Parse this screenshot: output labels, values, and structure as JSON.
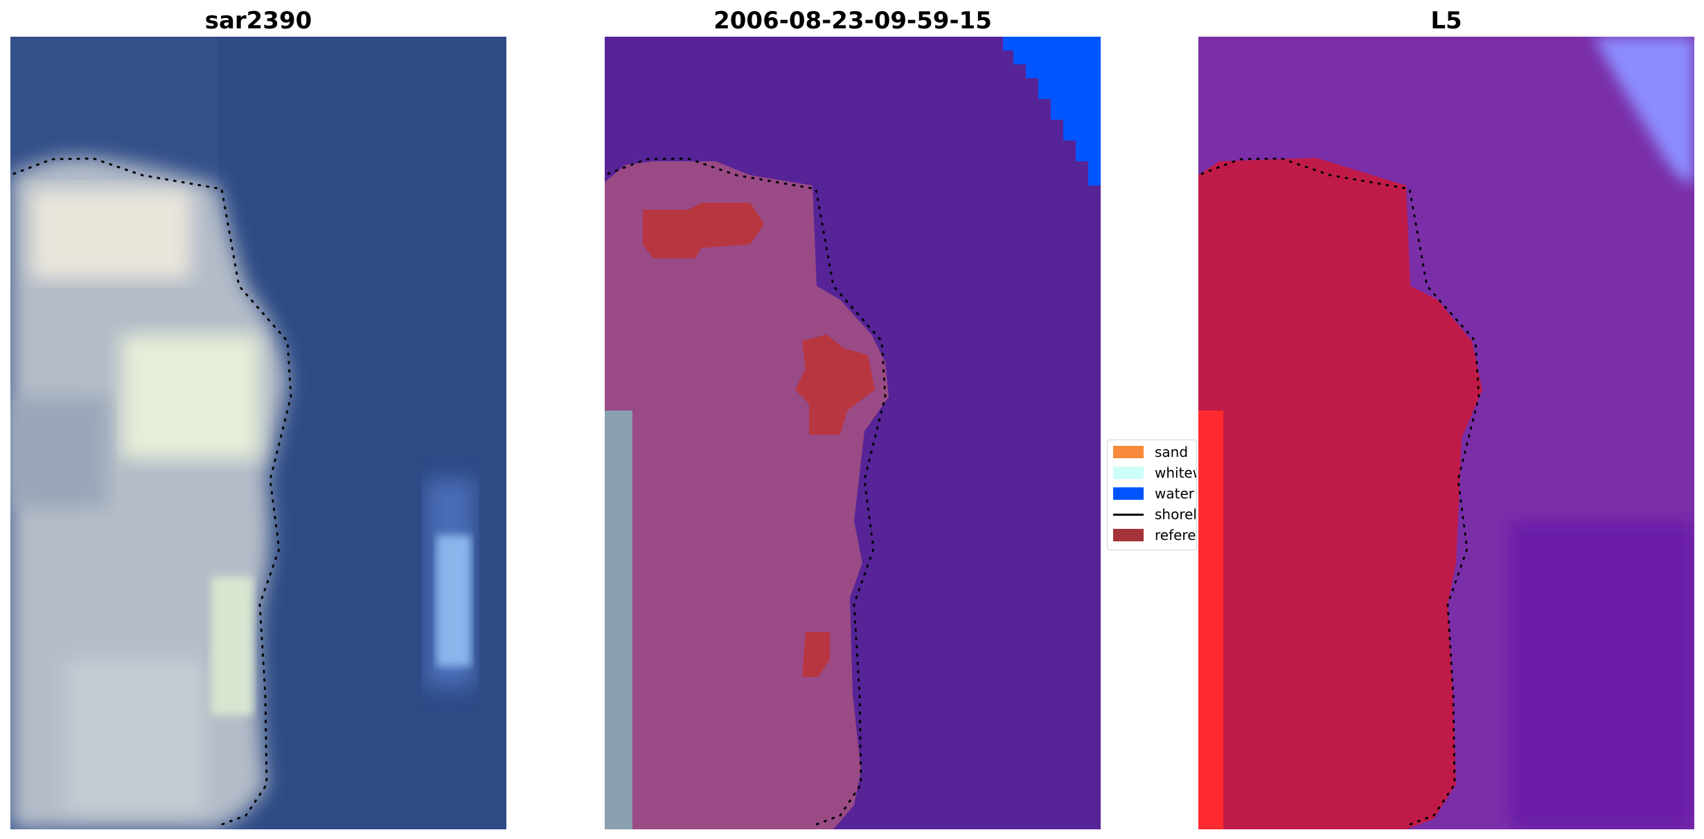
{
  "panels": [
    {
      "title": "sar2390"
    },
    {
      "title": "2006-08-23-09-59-15"
    },
    {
      "title": "L5"
    }
  ],
  "legend": {
    "items": [
      {
        "label": "sand",
        "color": "#f78a3a",
        "kind": "patch"
      },
      {
        "label": "whitewater",
        "color": "#ccfff7",
        "kind": "patch"
      },
      {
        "label": "water",
        "color": "#0055ff",
        "kind": "patch"
      },
      {
        "label": "shoreline",
        "color": "#000000",
        "kind": "line"
      },
      {
        "label": "reference",
        "color": "#a43238",
        "kind": "patch"
      }
    ]
  },
  "colors": {
    "rgb_water": "#34508a",
    "rgb_land": "#b4bcc8",
    "class_water_bg": "#562496",
    "class_land": "#9a4a85",
    "class_whitewater": "#8aa0b0",
    "class_water_patch": "#0055ff",
    "class_reference": "#b8363f",
    "index_water": "#7a2fa8",
    "index_land": "#c01a48",
    "index_edge": "#ff2a30",
    "index_water_corner": "#8c8cff"
  }
}
